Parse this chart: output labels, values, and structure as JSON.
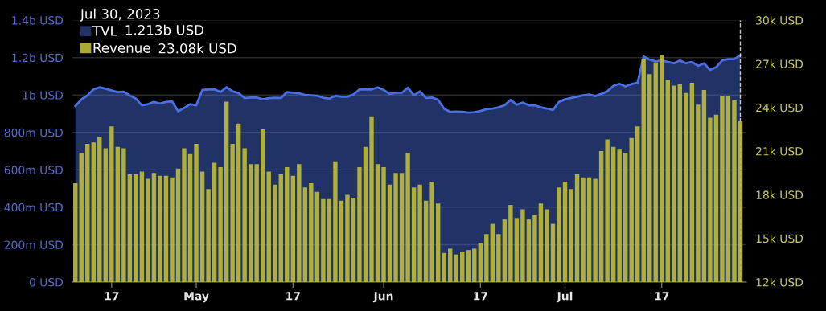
{
  "chart_data": {
    "type": "bar",
    "legend_title": "Jul 30, 2023",
    "annotations": [
      "1.213b USD",
      "23.08k USD"
    ],
    "x": [
      "2023-04-11",
      "2023-04-12",
      "2023-04-13",
      "2023-04-14",
      "2023-04-15",
      "2023-04-16",
      "2023-04-17",
      "2023-04-18",
      "2023-04-19",
      "2023-04-20",
      "2023-04-21",
      "2023-04-22",
      "2023-04-23",
      "2023-04-24",
      "2023-04-25",
      "2023-04-26",
      "2023-04-27",
      "2023-04-28",
      "2023-04-29",
      "2023-04-30",
      "2023-05-01",
      "2023-05-02",
      "2023-05-03",
      "2023-05-04",
      "2023-05-05",
      "2023-05-06",
      "2023-05-07",
      "2023-05-08",
      "2023-05-09",
      "2023-05-10",
      "2023-05-11",
      "2023-05-12",
      "2023-05-13",
      "2023-05-14",
      "2023-05-15",
      "2023-05-16",
      "2023-05-17",
      "2023-05-18",
      "2023-05-19",
      "2023-05-20",
      "2023-05-21",
      "2023-05-22",
      "2023-05-23",
      "2023-05-24",
      "2023-05-25",
      "2023-05-26",
      "2023-05-27",
      "2023-05-28",
      "2023-05-29",
      "2023-05-30",
      "2023-05-31",
      "2023-06-01",
      "2023-06-02",
      "2023-06-03",
      "2023-06-04",
      "2023-06-05",
      "2023-06-06",
      "2023-06-07",
      "2023-06-08",
      "2023-06-09",
      "2023-06-10",
      "2023-06-11",
      "2023-06-12",
      "2023-06-13",
      "2023-06-14",
      "2023-06-15",
      "2023-06-16",
      "2023-06-17",
      "2023-06-18",
      "2023-06-19",
      "2023-06-20",
      "2023-06-21",
      "2023-06-22",
      "2023-06-23",
      "2023-06-24",
      "2023-06-25",
      "2023-06-26",
      "2023-06-27",
      "2023-06-28",
      "2023-06-29",
      "2023-06-30",
      "2023-07-01",
      "2023-07-02",
      "2023-07-03",
      "2023-07-04",
      "2023-07-05",
      "2023-07-06",
      "2023-07-07",
      "2023-07-08",
      "2023-07-09",
      "2023-07-10",
      "2023-07-11",
      "2023-07-12",
      "2023-07-13",
      "2023-07-14",
      "2023-07-15",
      "2023-07-16",
      "2023-07-17",
      "2023-07-18",
      "2023-07-19",
      "2023-07-20",
      "2023-07-21",
      "2023-07-22",
      "2023-07-23",
      "2023-07-24",
      "2023-07-25",
      "2023-07-26",
      "2023-07-27",
      "2023-07-28",
      "2023-07-29",
      "2023-07-30"
    ],
    "series": [
      {
        "name": "TVL",
        "type": "area",
        "color": "#4a6fe3",
        "values": [
          941000000,
          977000000,
          998000000,
          1030000000,
          1041000000,
          1034000000,
          1024000000,
          1016000000,
          1018000000,
          998000000,
          981000000,
          945000000,
          951000000,
          963000000,
          955000000,
          963000000,
          966000000,
          913000000,
          931000000,
          951000000,
          945000000,
          1027000000,
          1030000000,
          1031000000,
          1016000000,
          1041000000,
          1020000000,
          1010000000,
          984000000,
          987000000,
          987000000,
          977000000,
          983000000,
          986000000,
          984000000,
          1016000000,
          1012000000,
          1009000000,
          1001000000,
          998000000,
          996000000,
          986000000,
          981000000,
          996000000,
          991000000,
          991000000,
          1003000000,
          1030000000,
          1031000000,
          1030000000,
          1041000000,
          1027000000,
          1006000000,
          1012000000,
          1012000000,
          1039000000,
          998000000,
          1020000000,
          984000000,
          987000000,
          974000000,
          927000000,
          910000000,
          911000000,
          910000000,
          906000000,
          908000000,
          915000000,
          924000000,
          928000000,
          934000000,
          945000000,
          974000000,
          948000000,
          960000000,
          945000000,
          945000000,
          934000000,
          928000000,
          920000000,
          963000000,
          977000000,
          984000000,
          991000000,
          998000000,
          1003000000,
          994000000,
          1006000000,
          1020000000,
          1049000000,
          1060000000,
          1046000000,
          1059000000,
          1066000000,
          1206000000,
          1189000000,
          1180000000,
          1185000000,
          1177000000,
          1170000000,
          1185000000,
          1170000000,
          1177000000,
          1156000000,
          1170000000,
          1134000000,
          1149000000,
          1185000000,
          1192000000,
          1192000000,
          1213000000
        ]
      },
      {
        "name": "Revenue",
        "axis": "y2",
        "color": "#bfbd38",
        "values": [
          18.8,
          20.9,
          21.5,
          21.6,
          22.0,
          21.2,
          22.7,
          21.3,
          21.2,
          19.4,
          19.4,
          19.6,
          19.1,
          19.5,
          19.3,
          19.3,
          19.2,
          19.8,
          21.2,
          20.8,
          21.5,
          19.6,
          18.4,
          20.2,
          19.9,
          24.4,
          21.5,
          22.9,
          21.2,
          20.1,
          20.1,
          22.5,
          19.6,
          18.7,
          19.4,
          19.9,
          19.3,
          20.1,
          18.5,
          18.8,
          18.2,
          17.7,
          17.7,
          20.3,
          17.6,
          18.0,
          17.8,
          19.9,
          21.3,
          23.4,
          20.1,
          19.9,
          18.7,
          19.5,
          19.5,
          20.9,
          18.5,
          18.7,
          17.6,
          18.9,
          17.4,
          14.0,
          14.3,
          13.9,
          14.1,
          14.2,
          14.3,
          14.7,
          15.3,
          16.0,
          15.3,
          16.3,
          17.3,
          16.4,
          17.0,
          16.3,
          16.6,
          17.4,
          17.0,
          16.0,
          18.5,
          18.9,
          18.4,
          19.4,
          19.2,
          19.2,
          19.1,
          21.0,
          21.8,
          21.3,
          21.1,
          20.9,
          21.9,
          22.7,
          27.3,
          26.3,
          27.1,
          27.6,
          25.9,
          25.5,
          25.6,
          25.0,
          25.7,
          24.2,
          25.2,
          23.3,
          23.5,
          24.8,
          24.8,
          24.5,
          23.08
        ]
      }
    ],
    "xlim": [
      "2023-04-10T12:00",
      "2023-07-31T00:00"
    ],
    "xticks": [
      {
        "value": "2023-04-17",
        "label": "17"
      },
      {
        "value": "2023-05-01",
        "label": "May"
      },
      {
        "value": "2023-05-17",
        "label": "17"
      },
      {
        "value": "2023-06-01",
        "label": "Jun"
      },
      {
        "value": "2023-06-17",
        "label": "17"
      },
      {
        "value": "2023-07-01",
        "label": "Jul"
      },
      {
        "value": "2023-07-17",
        "label": "17"
      }
    ],
    "ylim": [
      0,
      1400000000
    ],
    "yticks": [
      {
        "value": 0,
        "label": "0 USD"
      },
      {
        "value": 200000000,
        "label": "200m USD"
      },
      {
        "value": 400000000,
        "label": "400m USD"
      },
      {
        "value": 600000000,
        "label": "600m USD"
      },
      {
        "value": 800000000,
        "label": "800m USD"
      },
      {
        "value": 1000000000,
        "label": "1b USD"
      },
      {
        "value": 1200000000,
        "label": "1.2b USD"
      },
      {
        "value": 1400000000,
        "label": "1.4b USD"
      }
    ],
    "y2lim": [
      12,
      30
    ],
    "y2ticks": [
      {
        "value": 12,
        "label": "12k USD"
      },
      {
        "value": 15,
        "label": "15k USD"
      },
      {
        "value": 18,
        "label": "18k USD"
      },
      {
        "value": 21,
        "label": "21k USD"
      },
      {
        "value": 24,
        "label": "24k USD"
      },
      {
        "value": 27,
        "label": "27k USD"
      },
      {
        "value": 30,
        "label": "30k USD"
      }
    ],
    "ref_lines": [
      {
        "axis": "x",
        "value": "2023-07-30",
        "color": "#c8c8c8",
        "line_style": "dashed"
      }
    ],
    "grid": "y",
    "legend": "top left"
  }
}
